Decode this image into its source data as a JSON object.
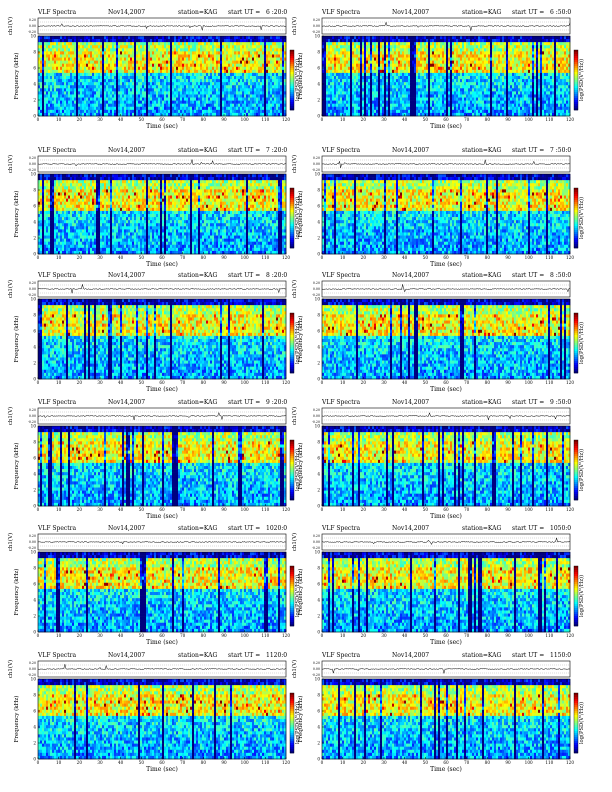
{
  "header": {
    "title": "VLF Spectra",
    "date": "Nov14,2007",
    "station": "station=KAG",
    "start_prefix": "start  UT =",
    "ch_label": "ch1(V)",
    "freq_label": "Frequency (kHz)",
    "time_label": "Time (sec)",
    "cbar_label": "log(PSD(V²/Hz))"
  },
  "panels": [
    {
      "start": "6 :20:0"
    },
    {
      "start": "6 :50:0"
    },
    {
      "start": "7 :20:0"
    },
    {
      "start": "7 :50:0"
    },
    {
      "start": "8 :20:0"
    },
    {
      "start": "8 :50:0"
    },
    {
      "start": "9 :20:0"
    },
    {
      "start": "9 :50:0"
    },
    {
      "start": "1020:0"
    },
    {
      "start": "1050:0"
    },
    {
      "start": "1120:0"
    },
    {
      "start": "1150:0"
    }
  ],
  "chart_data": {
    "type": "heatmap",
    "title": "VLF Spectra",
    "date": "Nov14,2007",
    "station": "KAG",
    "start_times_ut": [
      "6 :20:0",
      "6 :50:0",
      "7 :20:0",
      "7 :50:0",
      "8 :20:0",
      "8 :50:0",
      "9 :20:0",
      "9 :50:0",
      "1020:0",
      "1050:0",
      "1120:0",
      "1150:0"
    ],
    "xlabel": "Time (sec)",
    "xlim": [
      0,
      120
    ],
    "xticks": [
      0,
      10,
      20,
      30,
      40,
      50,
      60,
      70,
      80,
      90,
      100,
      110,
      120
    ],
    "ylabel": "Frequency (kHz)",
    "ylim": [
      0,
      10
    ],
    "yticks": [
      0,
      2,
      4,
      6,
      8,
      10
    ],
    "ch_axis_label": "ch1(V)",
    "ch_axis_ticks": [
      "0.20",
      "0.00",
      "-0.20"
    ],
    "colorbar_label": "log(PSD(V²/Hz))",
    "colormap": "jet",
    "colors": {
      "low": "#00007f",
      "mid": "#00ffff",
      "high": "#7f0000"
    }
  }
}
